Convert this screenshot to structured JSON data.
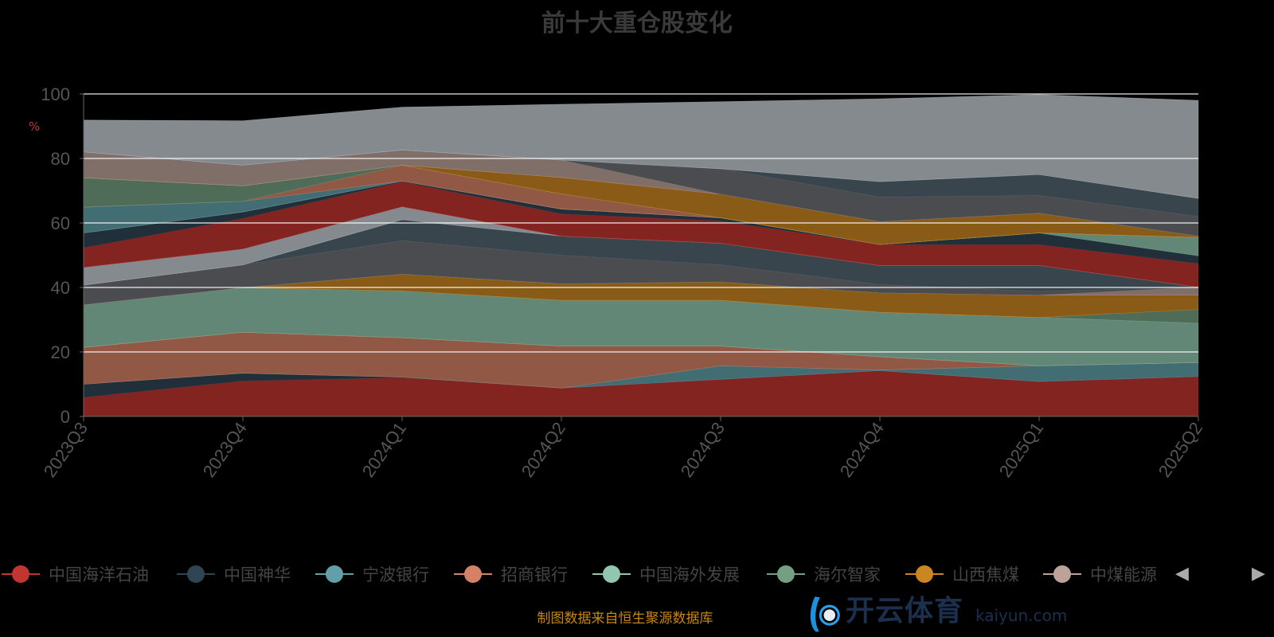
{
  "title": "前十大重仓股变化",
  "footer": "制图数据来自恒生聚源数据库",
  "watermark": {
    "cn": "开云体育",
    "en": "kaiyun.com"
  },
  "legend_pager": {
    "prev": "◀",
    "next": "▶"
  },
  "chart_data": {
    "type": "area",
    "stacked": true,
    "title": "前十大重仓股变化",
    "ylabel": "%",
    "xlabel": "",
    "ylim": [
      0,
      100
    ],
    "yticks": [
      "0",
      "20",
      "40",
      "60",
      "80",
      "100"
    ],
    "grid": true,
    "legend_position": "bottom",
    "categories": [
      "2023Q3",
      "2023Q4",
      "2024Q1",
      "2024Q2",
      "2024Q3",
      "2024Q4",
      "2025Q1",
      "2025Q2"
    ],
    "legend": [
      {
        "name": "中国海洋石油",
        "color": "#c23531"
      },
      {
        "name": "中国神华",
        "color": "#2f4554"
      },
      {
        "name": "宁波银行",
        "color": "#61a0a8"
      },
      {
        "name": "招商银行",
        "color": "#d48265"
      },
      {
        "name": "中国海外发展",
        "color": "#91c7ae"
      },
      {
        "name": "海尔智家",
        "color": "#749f83"
      },
      {
        "name": "山西焦煤",
        "color": "#ca8622"
      },
      {
        "name": "中煤能源",
        "color": "#bda29a"
      }
    ],
    "series": [
      {
        "color": "#c23531",
        "values": [
          5.9,
          11.0,
          12.0,
          8.8,
          11.5,
          14.2,
          10.8,
          12.4
        ]
      },
      {
        "color": "#2f4554",
        "values": [
          4.1,
          2.4,
          0.2,
          0,
          0,
          0,
          0,
          0
        ]
      },
      {
        "color": "#61a0a8",
        "values": [
          0,
          0,
          0,
          0,
          4.2,
          0.2,
          4.9,
          4.3
        ]
      },
      {
        "color": "#d48265",
        "values": [
          11.4,
          12.7,
          12.2,
          13.0,
          6.1,
          4.1,
          0,
          0
        ]
      },
      {
        "color": "#91c7ae",
        "values": [
          13.2,
          13.8,
          14.5,
          14.2,
          14.2,
          13.8,
          15.0,
          12.2
        ]
      },
      {
        "color": "#749f83",
        "values": [
          0,
          0,
          0,
          0,
          0,
          0,
          0,
          4.3
        ]
      },
      {
        "color": "#ca8622",
        "values": [
          0,
          0,
          5.2,
          5.1,
          5.7,
          6.0,
          6.9,
          4.4
        ]
      },
      {
        "color": "#bda29a",
        "values": [
          0,
          0,
          0,
          0,
          0,
          0,
          0,
          2.5
        ]
      },
      {
        "color": "#6e7074",
        "values": [
          6.1,
          7.1,
          10.4,
          8.9,
          5.3,
          2.6,
          1.2,
          0
        ]
      },
      {
        "color": "#546570",
        "values": [
          0,
          0,
          6.5,
          5.9,
          6.7,
          5.9,
          8.0,
          0
        ]
      },
      {
        "color": "#c4ccd3",
        "values": [
          5.5,
          4.9,
          4.0,
          0,
          0,
          0,
          0,
          0
        ]
      },
      {
        "color": "#c23531",
        "values": [
          6.1,
          9.5,
          7.8,
          6.9,
          6.9,
          6.5,
          6.5,
          7.3
        ]
      },
      {
        "color": "#2f4554",
        "values": [
          4.6,
          2.0,
          0.2,
          1.5,
          1.0,
          0,
          3.6,
          2.4
        ]
      },
      {
        "color": "#91c7ae",
        "values": [
          0,
          0,
          0,
          0,
          0,
          0,
          0,
          5.7
        ]
      },
      {
        "color": "#61a0a8",
        "values": [
          8.0,
          3.3,
          0,
          0,
          0,
          0,
          0,
          0
        ]
      },
      {
        "color": "#d48265",
        "values": [
          0,
          0,
          4.9,
          4.7,
          0,
          0,
          0,
          0
        ]
      },
      {
        "color": "#749f83",
        "values": [
          9.1,
          4.8,
          0,
          0,
          0,
          0,
          0,
          0
        ]
      },
      {
        "color": "#ca8622",
        "values": [
          0,
          0,
          0,
          5.1,
          7.3,
          7.1,
          6.1,
          0.4
        ]
      },
      {
        "color": "#bda29a",
        "values": [
          8.0,
          6.4,
          4.7,
          5.4,
          0,
          0,
          0,
          0
        ]
      },
      {
        "color": "#6e7074",
        "values": [
          0,
          0,
          0,
          0,
          7.9,
          7.6,
          5.5,
          6.1
        ]
      },
      {
        "color": "#546570",
        "values": [
          0,
          0,
          0,
          0,
          0,
          4.8,
          6.5,
          5.6
        ]
      },
      {
        "color": "#c4ccd3",
        "values": [
          9.9,
          13.8,
          13.3,
          17.3,
          20.8,
          25.7,
          24.8,
          30.4
        ]
      }
    ]
  }
}
